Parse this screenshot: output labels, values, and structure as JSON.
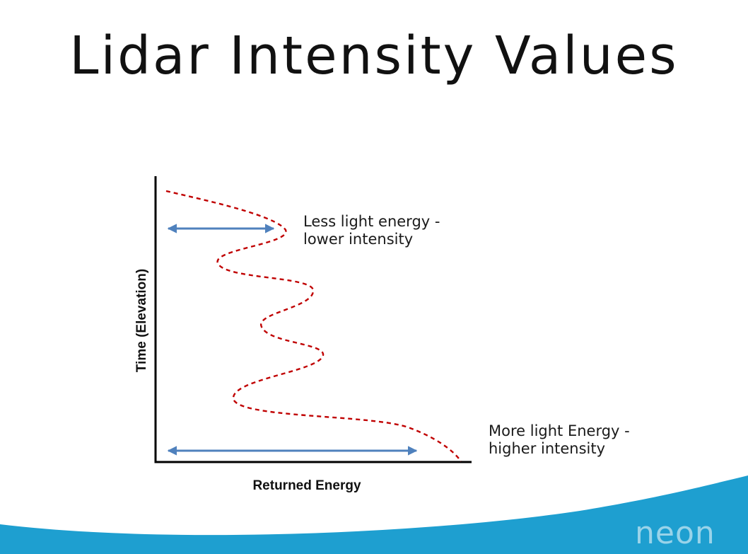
{
  "title": "Lidar Intensity Values",
  "axes": {
    "y_label": "Time (Elevation)",
    "x_label": "Returned Energy"
  },
  "annotations": {
    "top_line1": "Less light energy -",
    "top_line2": "lower intensity",
    "bottom_line1": "More light Energy -",
    "bottom_line2": "higher intensity"
  },
  "logo": "neon",
  "colors": {
    "waveform": "#c00000",
    "arrow": "#4f81bd",
    "axis": "#000000",
    "footer_wave": "#1e9fd0"
  }
}
